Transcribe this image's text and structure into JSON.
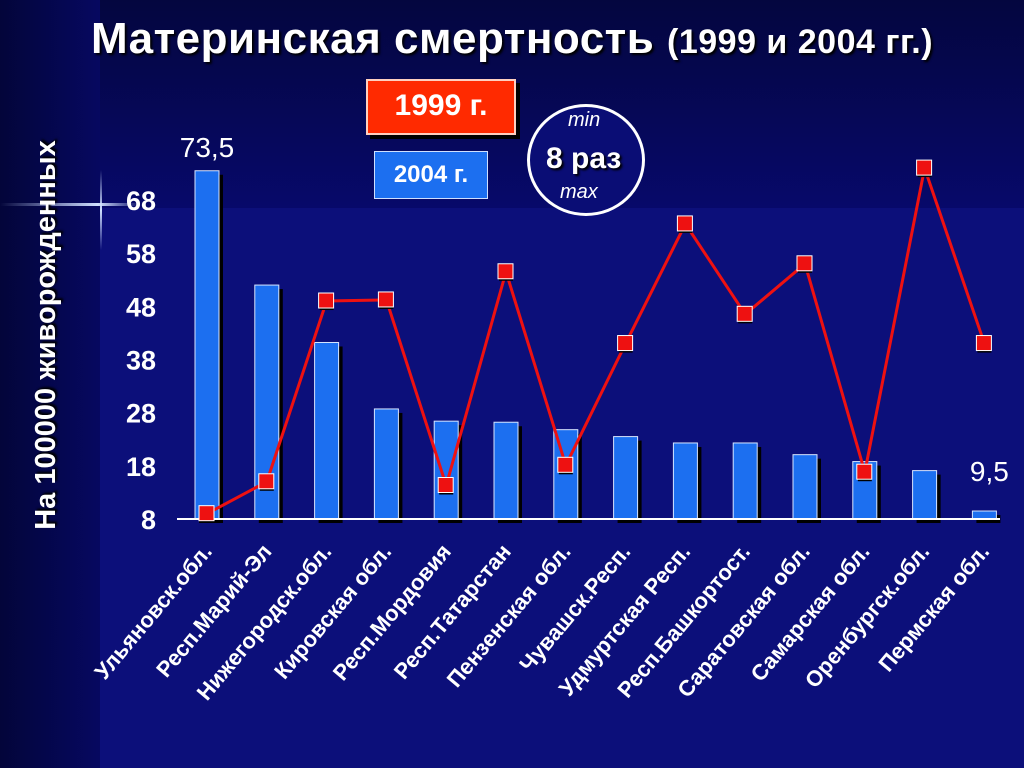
{
  "title": {
    "main": "Материнская смертность",
    "years": "(1999 и 2004 гг.)"
  },
  "legend": {
    "y1999": "1999 г.",
    "y2004": "2004 г."
  },
  "ratio_badge": {
    "min": "min",
    "value": "8 раз",
    "max": "max"
  },
  "colors": {
    "bar_2004": "#1c6ff0",
    "line_1999": "#ee1111",
    "background": "#0c0f7a"
  },
  "chart_data": {
    "type": "bar",
    "ylabel": "На 100000 живорожденных",
    "ylim": [
      8,
      73.5
    ],
    "yticks": [
      8,
      18,
      28,
      38,
      48,
      58,
      68
    ],
    "categories": [
      "Ульяновск.обл.",
      "Респ.Марий-Эл",
      "Нижегородск.обл.",
      "Кировская обл.",
      "Респ.Мордовия",
      "Респ.Татарстан",
      "Пензенская обл.",
      "Чувашск.Респ.",
      "Удмуртская Респ.",
      "Респ.Башкортост.",
      "Саратовская обл.",
      "Самарская обл.",
      "Оренбургск.обл.",
      "Пермская обл."
    ],
    "series": [
      {
        "name": "2004 г.",
        "kind": "bar",
        "values": [
          73.5,
          52,
          41.2,
          28.7,
          26.4,
          26.2,
          24.8,
          23.5,
          22.3,
          22.3,
          20.1,
          18.8,
          17.1,
          9.5
        ]
      },
      {
        "name": "1999 г.",
        "kind": "line",
        "values": [
          9.0,
          15.0,
          49.0,
          49.2,
          14.3,
          54.5,
          18.1,
          41.0,
          63.5,
          46.5,
          56.0,
          16.8,
          74.0,
          41.0
        ]
      }
    ],
    "data_labels": [
      {
        "text": "73,5",
        "series": "2004 г.",
        "index": 0
      },
      {
        "text": "9,5",
        "series": "2004 г.",
        "index": 13
      }
    ]
  }
}
